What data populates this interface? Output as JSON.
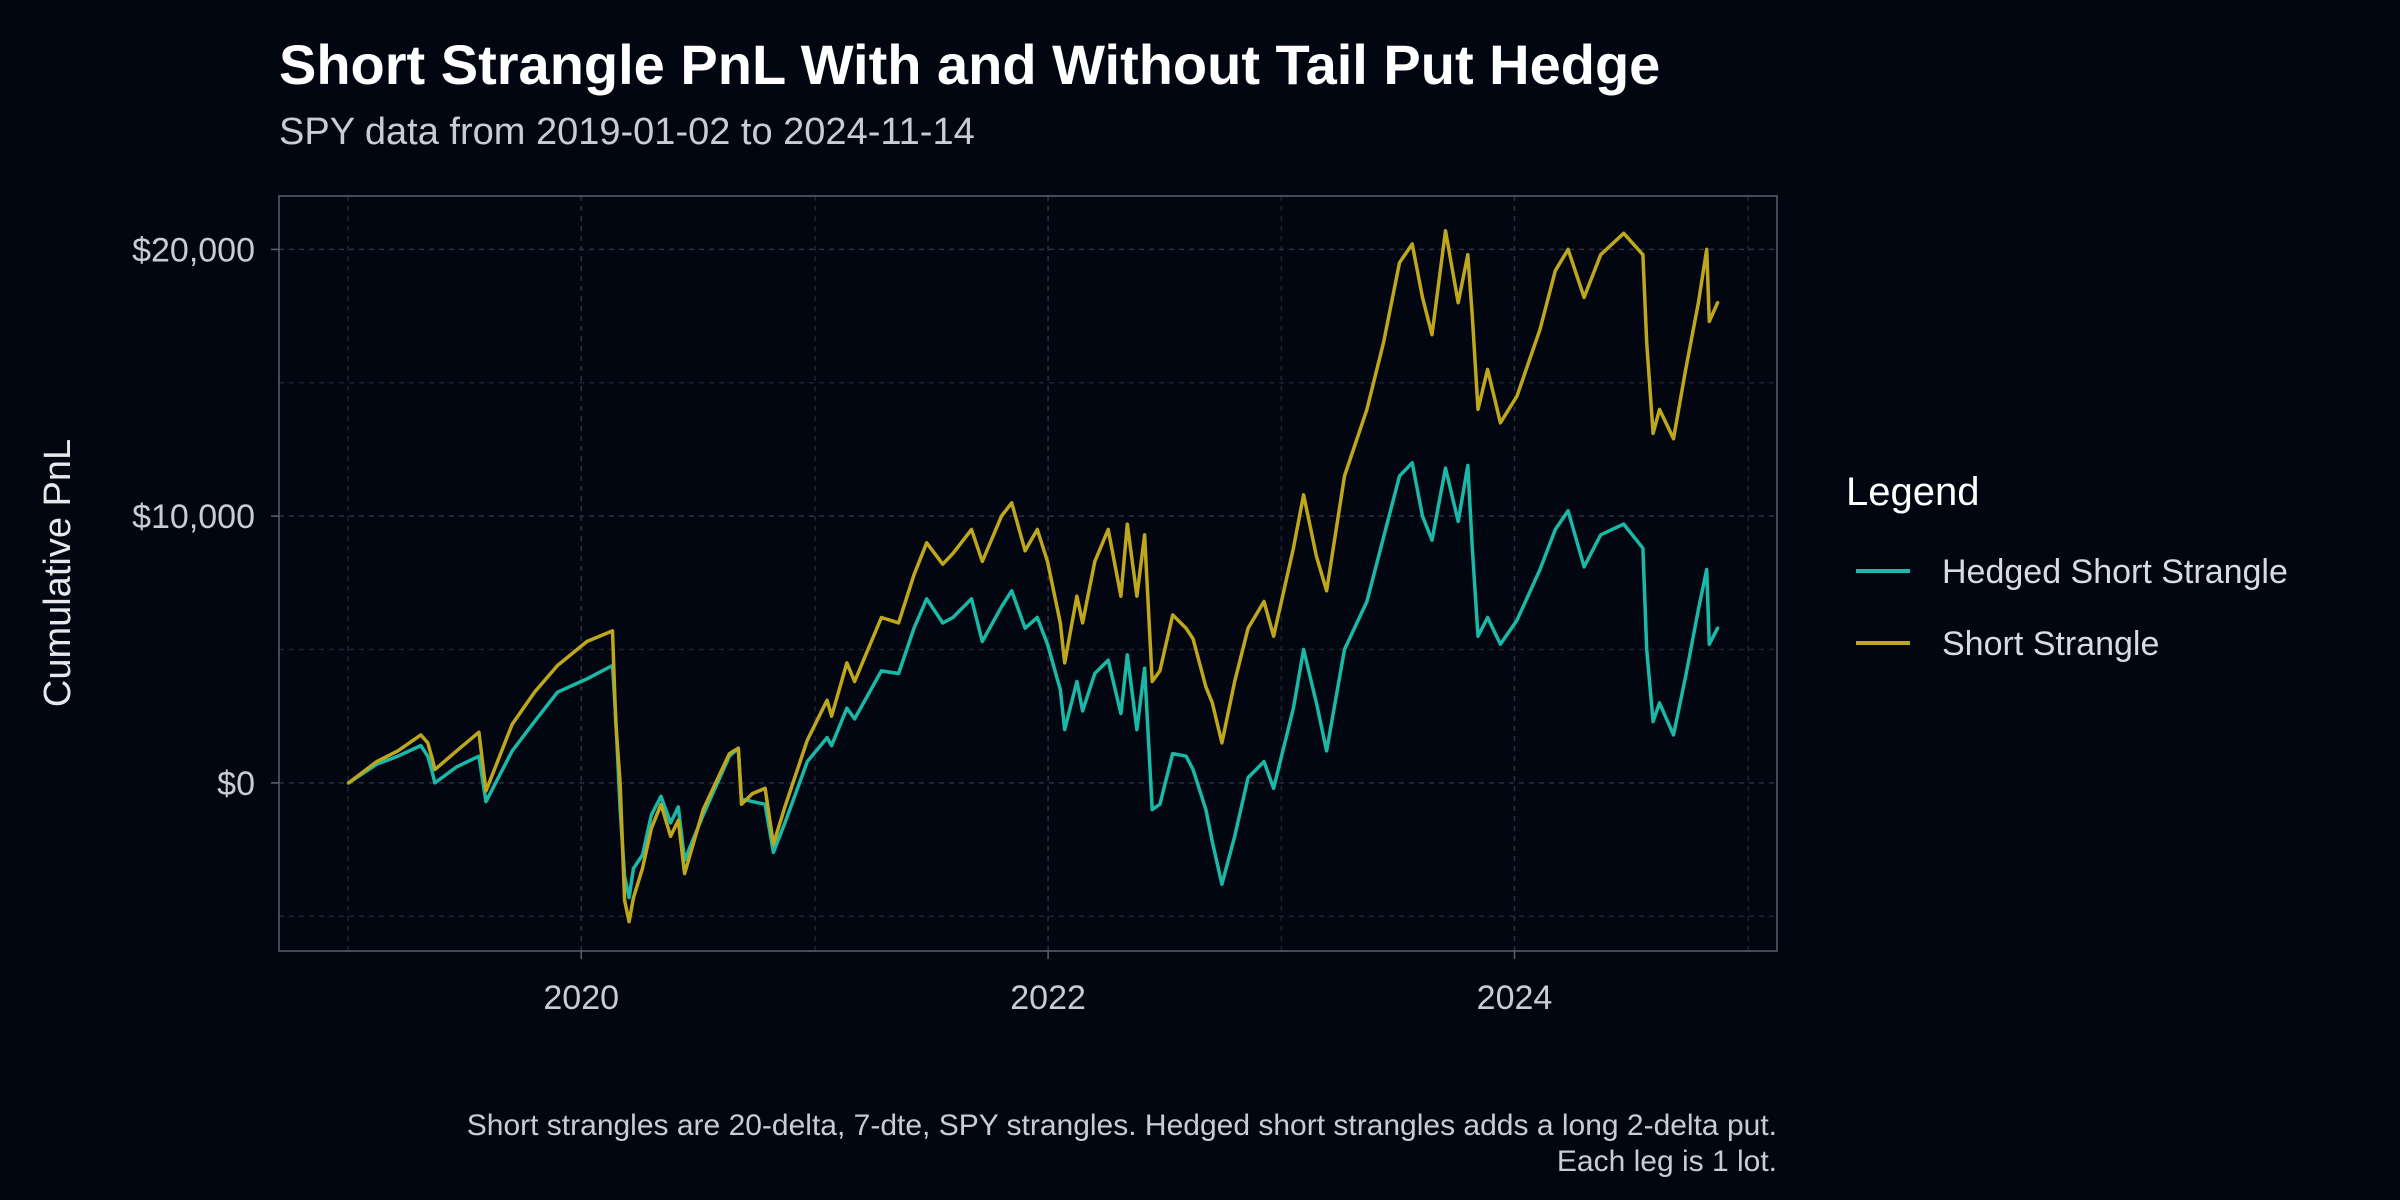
{
  "chart_data": {
    "type": "line",
    "title": "Short Strangle PnL With and Without Tail Put Hedge",
    "subtitle": "SPY data from 2019-01-02 to 2024-11-14",
    "xlabel": "",
    "ylabel": "Cumulative PnL",
    "caption": [
      "Short strangles are 20-delta, 7-dte, SPY strangles. Hedged short strangles adds a long 2-delta put.",
      "Each leg is 1 lot."
    ],
    "x_range": [
      "2018-09-15",
      "2025-02-15"
    ],
    "ylim": [
      -6300,
      22000
    ],
    "x_ticks": [
      {
        "date": "2020-01-01",
        "label": "2020"
      },
      {
        "date": "2022-01-01",
        "label": "2022"
      },
      {
        "date": "2024-01-01",
        "label": "2024"
      }
    ],
    "x_minor_ticks": [
      "2019-01-01",
      "2021-01-01",
      "2023-01-01",
      "2025-01-01"
    ],
    "y_ticks": [
      {
        "value": 0,
        "label": "$0"
      },
      {
        "value": 10000,
        "label": "$10,000"
      },
      {
        "value": 20000,
        "label": "$20,000"
      }
    ],
    "y_minor_ticks": [
      -5000,
      5000,
      15000
    ],
    "grid": true,
    "legend": {
      "title": "Legend",
      "position": "right"
    },
    "series": [
      {
        "name": "Hedged Short Strangle",
        "color": "#1ab8a6",
        "points": [
          [
            "2019-01-02",
            0
          ],
          [
            "2019-02-15",
            700
          ],
          [
            "2019-03-20",
            1000
          ],
          [
            "2019-04-25",
            1400
          ],
          [
            "2019-05-06",
            1000
          ],
          [
            "2019-05-13",
            400
          ],
          [
            "2019-05-17",
            0
          ],
          [
            "2019-06-20",
            600
          ],
          [
            "2019-07-25",
            1000
          ],
          [
            "2019-08-05",
            -700
          ],
          [
            "2019-09-15",
            1200
          ],
          [
            "2019-10-20",
            2300
          ],
          [
            "2019-11-25",
            3400
          ],
          [
            "2020-01-10",
            3900
          ],
          [
            "2020-02-19",
            4400
          ],
          [
            "2020-02-24",
            2500
          ],
          [
            "2020-03-02",
            -1000
          ],
          [
            "2020-03-09",
            -3500
          ],
          [
            "2020-03-16",
            -4300
          ],
          [
            "2020-03-23",
            -3200
          ],
          [
            "2020-04-06",
            -2700
          ],
          [
            "2020-04-20",
            -1200
          ],
          [
            "2020-05-05",
            -500
          ],
          [
            "2020-05-20",
            -1500
          ],
          [
            "2020-06-01",
            -900
          ],
          [
            "2020-06-11",
            -2900
          ],
          [
            "2020-07-10",
            -1200
          ],
          [
            "2020-08-20",
            1000
          ],
          [
            "2020-09-03",
            1300
          ],
          [
            "2020-09-08",
            -600
          ],
          [
            "2020-09-25",
            -700
          ],
          [
            "2020-10-15",
            -800
          ],
          [
            "2020-10-28",
            -2600
          ],
          [
            "2020-11-15",
            -1500
          ],
          [
            "2020-12-20",
            800
          ],
          [
            "2021-01-20",
            1700
          ],
          [
            "2021-01-27",
            1400
          ],
          [
            "2021-02-20",
            2800
          ],
          [
            "2021-03-04",
            2400
          ],
          [
            "2021-04-15",
            4200
          ],
          [
            "2021-05-12",
            4100
          ],
          [
            "2021-06-05",
            5800
          ],
          [
            "2021-06-25",
            6900
          ],
          [
            "2021-07-20",
            6000
          ],
          [
            "2021-08-05",
            6200
          ],
          [
            "2021-09-03",
            6900
          ],
          [
            "2021-09-20",
            5300
          ],
          [
            "2021-10-20",
            6600
          ],
          [
            "2021-11-05",
            7200
          ],
          [
            "2021-11-26",
            5800
          ],
          [
            "2021-12-15",
            6200
          ],
          [
            "2021-12-31",
            5200
          ],
          [
            "2022-01-20",
            3500
          ],
          [
            "2022-01-27",
            2000
          ],
          [
            "2022-02-15",
            3800
          ],
          [
            "2022-02-24",
            2700
          ],
          [
            "2022-03-15",
            4100
          ],
          [
            "2022-04-05",
            4600
          ],
          [
            "2022-04-25",
            2600
          ],
          [
            "2022-05-05",
            4800
          ],
          [
            "2022-05-20",
            2000
          ],
          [
            "2022-06-01",
            4300
          ],
          [
            "2022-06-13",
            -1000
          ],
          [
            "2022-06-25",
            -800
          ],
          [
            "2022-07-15",
            1100
          ],
          [
            "2022-08-05",
            1000
          ],
          [
            "2022-08-16",
            500
          ],
          [
            "2022-09-05",
            -1000
          ],
          [
            "2022-09-15",
            -2200
          ],
          [
            "2022-09-30",
            -3800
          ],
          [
            "2022-10-20",
            -2000
          ],
          [
            "2022-11-10",
            200
          ],
          [
            "2022-12-05",
            800
          ],
          [
            "2022-12-20",
            -200
          ],
          [
            "2023-01-20",
            2800
          ],
          [
            "2023-02-05",
            5000
          ],
          [
            "2023-02-25",
            3000
          ],
          [
            "2023-03-13",
            1200
          ],
          [
            "2023-04-10",
            5000
          ],
          [
            "2023-05-15",
            6800
          ],
          [
            "2023-06-10",
            9200
          ],
          [
            "2023-07-05",
            11500
          ],
          [
            "2023-07-25",
            12000
          ],
          [
            "2023-08-10",
            10000
          ],
          [
            "2023-08-25",
            9100
          ],
          [
            "2023-09-15",
            11800
          ],
          [
            "2023-10-05",
            9800
          ],
          [
            "2023-10-20",
            11900
          ],
          [
            "2023-10-27",
            8800
          ],
          [
            "2023-11-05",
            5500
          ],
          [
            "2023-11-20",
            6200
          ],
          [
            "2023-12-10",
            5200
          ],
          [
            "2024-01-05",
            6100
          ],
          [
            "2024-02-10",
            8000
          ],
          [
            "2024-03-05",
            9500
          ],
          [
            "2024-03-25",
            10200
          ],
          [
            "2024-04-19",
            8100
          ],
          [
            "2024-05-15",
            9300
          ],
          [
            "2024-06-20",
            9700
          ],
          [
            "2024-07-20",
            8800
          ],
          [
            "2024-07-26",
            5000
          ],
          [
            "2024-08-05",
            2300
          ],
          [
            "2024-08-15",
            3000
          ],
          [
            "2024-09-06",
            1800
          ],
          [
            "2024-09-25",
            4000
          ],
          [
            "2024-10-15",
            6500
          ],
          [
            "2024-10-28",
            8000
          ],
          [
            "2024-11-01",
            5200
          ],
          [
            "2024-11-14",
            5800
          ]
        ]
      },
      {
        "name": "Short Strangle",
        "color": "#bfa71d",
        "points": [
          [
            "2019-01-02",
            0
          ],
          [
            "2019-02-15",
            800
          ],
          [
            "2019-03-20",
            1200
          ],
          [
            "2019-04-25",
            1800
          ],
          [
            "2019-05-06",
            1500
          ],
          [
            "2019-05-13",
            900
          ],
          [
            "2019-05-17",
            500
          ],
          [
            "2019-06-20",
            1200
          ],
          [
            "2019-07-25",
            1900
          ],
          [
            "2019-08-05",
            -300
          ],
          [
            "2019-09-15",
            2200
          ],
          [
            "2019-10-20",
            3400
          ],
          [
            "2019-11-25",
            4400
          ],
          [
            "2020-01-10",
            5300
          ],
          [
            "2020-02-19",
            5700
          ],
          [
            "2020-02-24",
            2300
          ],
          [
            "2020-03-02",
            0
          ],
          [
            "2020-03-09",
            -4400
          ],
          [
            "2020-03-16",
            -5200
          ],
          [
            "2020-03-23",
            -4300
          ],
          [
            "2020-04-06",
            -3200
          ],
          [
            "2020-04-20",
            -1700
          ],
          [
            "2020-05-05",
            -800
          ],
          [
            "2020-05-20",
            -2000
          ],
          [
            "2020-06-01",
            -1400
          ],
          [
            "2020-06-11",
            -3400
          ],
          [
            "2020-07-10",
            -1000
          ],
          [
            "2020-08-20",
            1100
          ],
          [
            "2020-09-03",
            1300
          ],
          [
            "2020-09-08",
            -800
          ],
          [
            "2020-09-25",
            -400
          ],
          [
            "2020-10-15",
            -200
          ],
          [
            "2020-10-28",
            -2300
          ],
          [
            "2020-11-15",
            -900
          ],
          [
            "2020-12-20",
            1600
          ],
          [
            "2021-01-20",
            3100
          ],
          [
            "2021-01-27",
            2500
          ],
          [
            "2021-02-20",
            4500
          ],
          [
            "2021-03-04",
            3800
          ],
          [
            "2021-04-15",
            6200
          ],
          [
            "2021-05-12",
            6000
          ],
          [
            "2021-06-05",
            7800
          ],
          [
            "2021-06-25",
            9000
          ],
          [
            "2021-07-20",
            8200
          ],
          [
            "2021-08-05",
            8600
          ],
          [
            "2021-09-03",
            9500
          ],
          [
            "2021-09-20",
            8300
          ],
          [
            "2021-10-20",
            10000
          ],
          [
            "2021-11-05",
            10500
          ],
          [
            "2021-11-26",
            8700
          ],
          [
            "2021-12-15",
            9500
          ],
          [
            "2021-12-31",
            8300
          ],
          [
            "2022-01-20",
            6000
          ],
          [
            "2022-01-27",
            4500
          ],
          [
            "2022-02-15",
            7000
          ],
          [
            "2022-02-24",
            6000
          ],
          [
            "2022-03-15",
            8300
          ],
          [
            "2022-04-05",
            9500
          ],
          [
            "2022-04-25",
            7000
          ],
          [
            "2022-05-05",
            9700
          ],
          [
            "2022-05-20",
            7000
          ],
          [
            "2022-06-01",
            9300
          ],
          [
            "2022-06-13",
            3800
          ],
          [
            "2022-06-25",
            4200
          ],
          [
            "2022-07-15",
            6300
          ],
          [
            "2022-08-05",
            5800
          ],
          [
            "2022-08-16",
            5400
          ],
          [
            "2022-09-05",
            3600
          ],
          [
            "2022-09-15",
            3000
          ],
          [
            "2022-09-30",
            1500
          ],
          [
            "2022-10-20",
            3800
          ],
          [
            "2022-11-10",
            5800
          ],
          [
            "2022-12-05",
            6800
          ],
          [
            "2022-12-20",
            5500
          ],
          [
            "2023-01-20",
            8800
          ],
          [
            "2023-02-05",
            10800
          ],
          [
            "2023-02-25",
            8500
          ],
          [
            "2023-03-13",
            7200
          ],
          [
            "2023-04-10",
            11500
          ],
          [
            "2023-05-15",
            14000
          ],
          [
            "2023-06-10",
            16500
          ],
          [
            "2023-07-05",
            19500
          ],
          [
            "2023-07-25",
            20200
          ],
          [
            "2023-08-10",
            18200
          ],
          [
            "2023-08-25",
            16800
          ],
          [
            "2023-09-15",
            20700
          ],
          [
            "2023-10-05",
            18000
          ],
          [
            "2023-10-20",
            19800
          ],
          [
            "2023-10-27",
            17500
          ],
          [
            "2023-11-05",
            14000
          ],
          [
            "2023-11-20",
            15500
          ],
          [
            "2023-12-10",
            13500
          ],
          [
            "2024-01-05",
            14500
          ],
          [
            "2024-02-10",
            17000
          ],
          [
            "2024-03-05",
            19200
          ],
          [
            "2024-03-25",
            20000
          ],
          [
            "2024-04-19",
            18200
          ],
          [
            "2024-05-15",
            19800
          ],
          [
            "2024-06-20",
            20600
          ],
          [
            "2024-07-20",
            19800
          ],
          [
            "2024-07-26",
            16500
          ],
          [
            "2024-08-05",
            13100
          ],
          [
            "2024-08-15",
            14000
          ],
          [
            "2024-09-06",
            12900
          ],
          [
            "2024-09-25",
            15500
          ],
          [
            "2024-10-15",
            18000
          ],
          [
            "2024-10-28",
            20000
          ],
          [
            "2024-11-01",
            17300
          ],
          [
            "2024-11-14",
            18000
          ]
        ]
      }
    ]
  }
}
